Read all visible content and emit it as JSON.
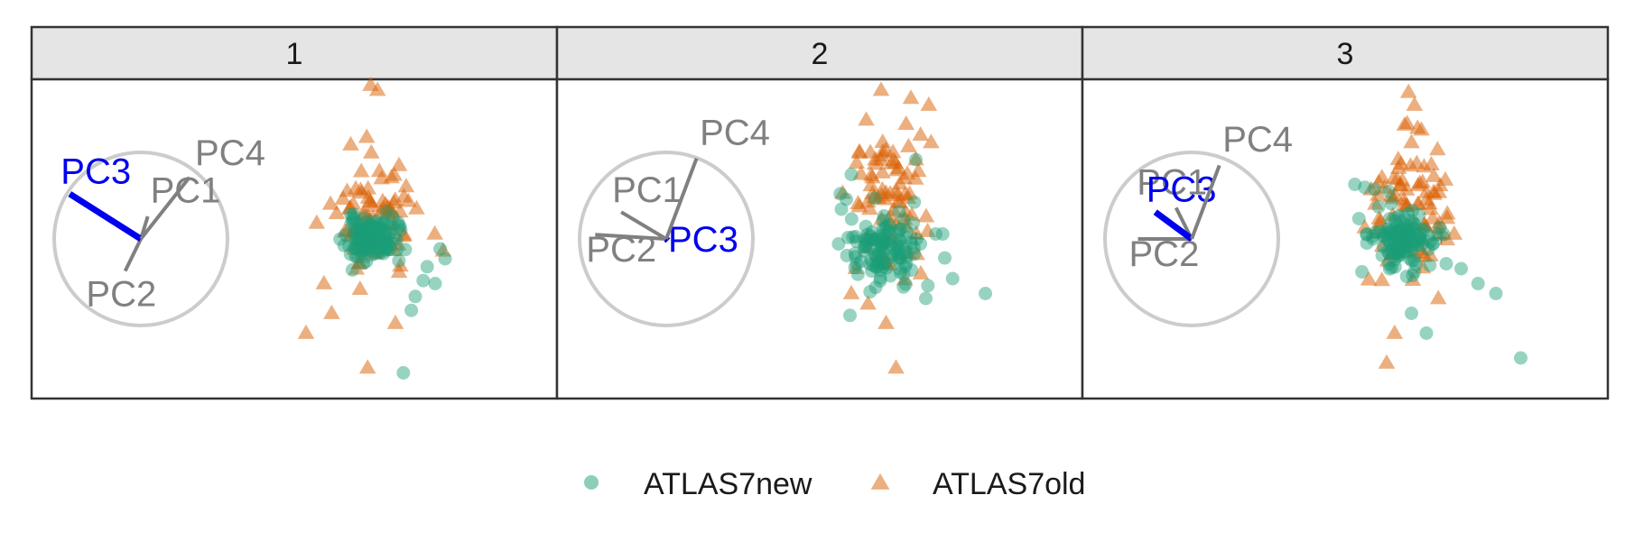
{
  "chart_data": {
    "type": "scatter",
    "description": "Faceted PCA tour projections (panels 1-3) with axes circle",
    "facets": [
      {
        "label": "1",
        "axes": [
          {
            "name": "PC1",
            "dx": 0.08,
            "dy": 0.26
          },
          {
            "name": "PC2",
            "dx": -0.18,
            "dy": -0.37
          },
          {
            "name": "PC3",
            "dx": -0.82,
            "dy": 0.52,
            "highlight": true
          },
          {
            "name": "PC4",
            "dx": 0.56,
            "dy": 0.71
          }
        ],
        "series": [
          {
            "name": "ATLAS7new",
            "center": [
              0.05,
              0.0
            ],
            "sx": 0.13,
            "sy": 0.11,
            "n": 120,
            "seed": 11,
            "extra": [
              [
                0.62,
                -0.28
              ],
              [
                0.58,
                -0.42
              ],
              [
                0.7,
                -0.45
              ],
              [
                0.8,
                -0.2
              ],
              [
                0.46,
                -0.72
              ],
              [
                0.5,
                -0.58
              ],
              [
                0.38,
                -1.35
              ],
              [
                0.75,
                -0.1
              ]
            ]
          },
          {
            "name": "ATLAS7old",
            "center": [
              0.05,
              0.25
            ],
            "sx": 0.22,
            "sy": 0.3,
            "n": 80,
            "seed": 29,
            "extra": [
              [
                0.05,
                1.55
              ],
              [
                0.12,
                1.5
              ],
              [
                -0.15,
                0.95
              ],
              [
                -0.6,
                -0.95
              ],
              [
                0.02,
                -1.3
              ],
              [
                0.3,
                -0.85
              ],
              [
                0.78,
                -0.12
              ],
              [
                -0.42,
                -0.45
              ]
            ]
          }
        ]
      },
      {
        "label": "2",
        "axes": [
          {
            "name": "PC1",
            "dx": -0.52,
            "dy": 0.31
          },
          {
            "name": "PC2",
            "dx": -0.82,
            "dy": 0.05
          },
          {
            "name": "PC3",
            "dx": 0.02,
            "dy": -0.02,
            "highlight": true
          },
          {
            "name": "PC4",
            "dx": 0.35,
            "dy": 0.93
          }
        ],
        "series": [
          {
            "name": "ATLAS7new",
            "center": [
              -0.05,
              -0.1
            ],
            "sx": 0.18,
            "sy": 0.2,
            "n": 120,
            "seed": 41,
            "extra": [
              [
                0.35,
                -0.6
              ],
              [
                0.62,
                -0.4
              ],
              [
                0.95,
                -0.55
              ],
              [
                0.45,
                0.05
              ],
              [
                -0.45,
                0.4
              ],
              [
                -0.5,
                0.3
              ],
              [
                -0.4,
                0.65
              ],
              [
                0.25,
                0.8
              ],
              [
                0.52,
                0.05
              ]
            ]
          },
          {
            "name": "ATLAS7old",
            "center": [
              -0.05,
              0.35
            ],
            "sx": 0.2,
            "sy": 0.35,
            "n": 80,
            "seed": 53,
            "extra": [
              [
                -0.1,
                1.5
              ],
              [
                0.2,
                1.42
              ],
              [
                0.38,
                1.35
              ],
              [
                -0.25,
                1.2
              ],
              [
                -0.4,
                -0.55
              ],
              [
                -0.05,
                -0.85
              ],
              [
                0.05,
                -1.3
              ],
              [
                0.3,
                -0.35
              ],
              [
                0.25,
                0.8
              ]
            ]
          }
        ]
      },
      {
        "label": "3",
        "axes": [
          {
            "name": "PC1",
            "dx": -0.18,
            "dy": 0.36
          },
          {
            "name": "PC2",
            "dx": -0.62,
            "dy": 0.0
          },
          {
            "name": "PC3",
            "dx": -0.42,
            "dy": 0.31,
            "highlight": true
          },
          {
            "name": "PC4",
            "dx": 0.32,
            "dy": 0.85
          }
        ],
        "series": [
          {
            "name": "ATLAS7new",
            "center": [
              -0.15,
              0.0
            ],
            "sx": 0.16,
            "sy": 0.14,
            "n": 120,
            "seed": 67,
            "extra": [
              [
                -0.62,
                0.55
              ],
              [
                -0.52,
                0.52
              ],
              [
                -0.42,
                0.5
              ],
              [
                -0.28,
                0.48
              ],
              [
                0.3,
                -0.25
              ],
              [
                0.45,
                -0.3
              ],
              [
                0.62,
                -0.45
              ],
              [
                0.8,
                -0.55
              ],
              [
                1.05,
                -1.2
              ],
              [
                0.1,
                -0.95
              ],
              [
                -0.05,
                -0.75
              ],
              [
                -0.5,
                0.05
              ]
            ]
          },
          {
            "name": "ATLAS7old",
            "center": [
              -0.1,
              0.3
            ],
            "sx": 0.2,
            "sy": 0.38,
            "n": 80,
            "seed": 83,
            "extra": [
              [
                -0.08,
                1.48
              ],
              [
                -0.02,
                1.35
              ],
              [
                -0.12,
                1.15
              ],
              [
                0.05,
                1.1
              ],
              [
                -0.3,
                -1.25
              ],
              [
                -0.22,
                -0.95
              ],
              [
                0.22,
                -0.6
              ],
              [
                0.38,
                0.05
              ],
              [
                0.15,
                0.75
              ]
            ]
          }
        ]
      }
    ],
    "legend": {
      "position": "bottom",
      "entries": [
        {
          "name": "ATLAS7new",
          "shape": "circle",
          "color": "#1b9e77"
        },
        {
          "name": "ATLAS7old",
          "shape": "triangle",
          "color": "#d95f02"
        }
      ]
    },
    "colors": {
      "new": "#1b9e77",
      "old": "#d95f02",
      "axis": "#808080",
      "highlight": "#0000ee",
      "circle": "#cccccc",
      "strip_bg": "#e5e5e5",
      "border": "#333333"
    }
  }
}
